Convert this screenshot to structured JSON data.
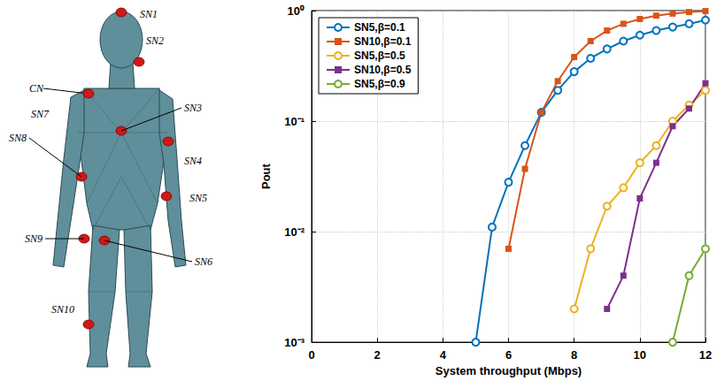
{
  "chart_data": {
    "type": "line",
    "xlabel": "System throughput (Mbps)",
    "ylabel": "Pout",
    "log": "y",
    "xlim": [
      0,
      12
    ],
    "xticks": [
      0,
      2,
      4,
      6,
      8,
      10,
      12
    ],
    "ylim": [
      0.001,
      1
    ],
    "yticks": [
      {
        "value": 0.001,
        "label": "10⁻³"
      },
      {
        "value": 0.01,
        "label": "10⁻²"
      },
      {
        "value": 0.1,
        "label": "10⁻¹"
      },
      {
        "value": 1,
        "label": "10⁰"
      }
    ],
    "grid": true,
    "legend": "upper left",
    "series": [
      {
        "name": "SN5,β=0.1",
        "color": "#0072BD",
        "marker": "circle",
        "x": [
          5,
          5.5,
          6,
          6.5,
          7,
          7.5,
          8,
          8.5,
          9,
          9.5,
          10,
          10.5,
          11,
          11.5,
          12
        ],
        "values": [
          0.001,
          0.011,
          0.028,
          0.06,
          0.12,
          0.19,
          0.28,
          0.37,
          0.45,
          0.53,
          0.6,
          0.66,
          0.71,
          0.76,
          0.82
        ]
      },
      {
        "name": "SN10,β=0.1",
        "color": "#D95319",
        "marker": "square",
        "x": [
          6,
          6.5,
          7,
          7.5,
          8,
          8.5,
          9,
          9.5,
          10,
          10.5,
          11,
          11.5,
          12
        ],
        "values": [
          0.007,
          0.037,
          0.12,
          0.23,
          0.38,
          0.53,
          0.66,
          0.76,
          0.84,
          0.9,
          0.94,
          0.97,
          0.99
        ]
      },
      {
        "name": "SN5,β=0.5",
        "color": "#EDB120",
        "marker": "circle",
        "x": [
          8,
          8.5,
          9,
          9.5,
          10,
          10.5,
          11,
          11.5,
          12
        ],
        "values": [
          0.002,
          0.007,
          0.017,
          0.025,
          0.042,
          0.06,
          0.1,
          0.14,
          0.19
        ]
      },
      {
        "name": "SN10,β=0.5",
        "color": "#7E2F8E",
        "marker": "square",
        "x": [
          9,
          9.5,
          10,
          10.5,
          11,
          11.5,
          12
        ],
        "values": [
          0.002,
          0.004,
          0.02,
          0.042,
          0.09,
          0.13,
          0.22
        ]
      },
      {
        "name": "SN5,β=0.9",
        "color": "#77AC30",
        "marker": "circle",
        "x": [
          11,
          11.5,
          12
        ],
        "values": [
          0.001,
          0.004,
          0.007
        ]
      }
    ]
  },
  "diagram": {
    "labels": [
      "SN1",
      "SN2",
      "CN",
      "SN7",
      "SN3",
      "SN4",
      "SN8",
      "SN5",
      "SN9",
      "SN6",
      "SN10"
    ]
  }
}
